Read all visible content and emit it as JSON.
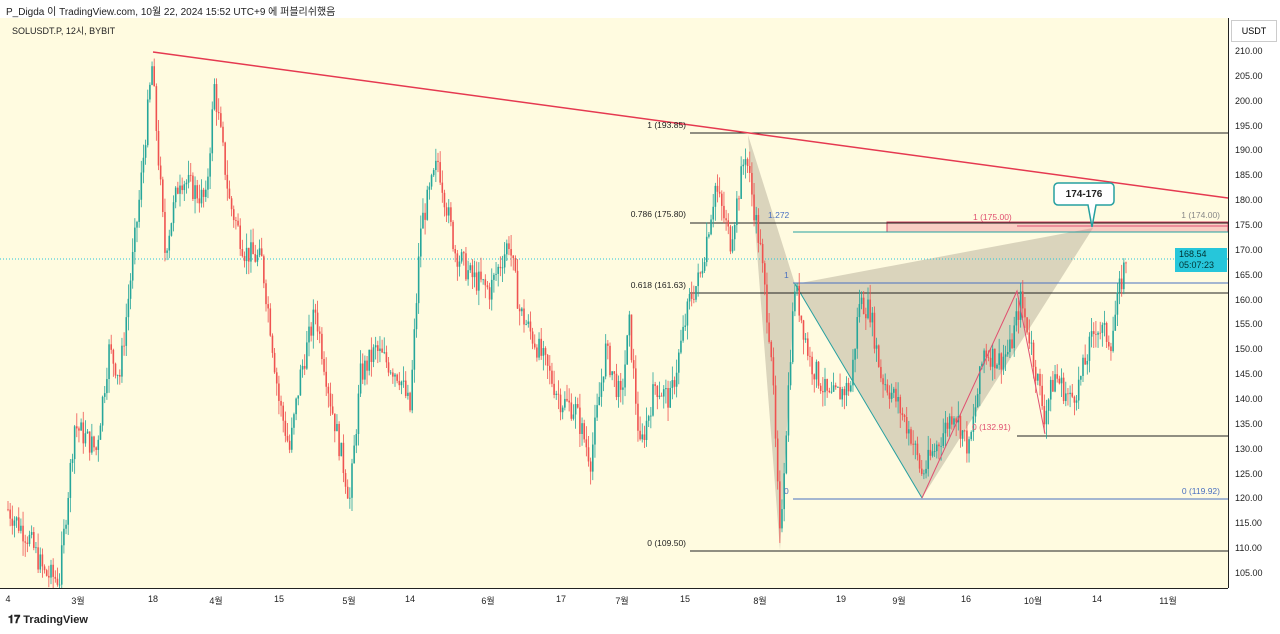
{
  "header": {
    "text": "P_Digda 이 TradingView.com, 10월 22, 2024 15:52 UTC+9 에 퍼블리쉬했음"
  },
  "symbol": "SOLUSDT.P, 12시, BYBIT",
  "axis": {
    "currency": "USDT",
    "prices": [
      "210.00",
      "205.00",
      "200.00",
      "195.00",
      "190.00",
      "185.00",
      "180.00",
      "175.00",
      "170.00",
      "165.00",
      "160.00",
      "155.00",
      "150.00",
      "145.00",
      "140.00",
      "135.00",
      "130.00",
      "125.00",
      "120.00",
      "115.00",
      "110.00",
      "105.00"
    ],
    "last_price": "168.54",
    "countdown": "05:07:23"
  },
  "xaxis": [
    "4",
    "3월",
    "18",
    "4월",
    "15",
    "5월",
    "14",
    "6월",
    "17",
    "7월",
    "15",
    "8월",
    "19",
    "9월",
    "16",
    "10월",
    "14",
    "11월"
  ],
  "annotations": {
    "fib_1": "1 (193.85)",
    "fib_786": "0.786 (175.80)",
    "fib_618": "0.618 (161.63)",
    "fib_0": "0 (109.50)",
    "ext_1272": "1.272",
    "ext_1": "1",
    "ext_0": "0",
    "ext_0_val": "0 (119.92)",
    "red_1": "1 (175.00)",
    "red_0": "0 (132.91)",
    "gray_1": "1 (174.00)",
    "callout": "174-176"
  },
  "footer": "TradingView",
  "chart_data": {
    "type": "candlestick",
    "price_range": [
      102,
      214
    ],
    "colors": {
      "up": "#26a69a",
      "down": "#ef5350",
      "trend": "#e53950"
    },
    "waypoints": [
      [
        0,
        118
      ],
      [
        10,
        112
      ],
      [
        17,
        105
      ],
      [
        24,
        104
      ],
      [
        31,
        135
      ],
      [
        41,
        130
      ],
      [
        47,
        150
      ],
      [
        52,
        145
      ],
      [
        61,
        180
      ],
      [
        67,
        207
      ],
      [
        73,
        170
      ],
      [
        80,
        185
      ],
      [
        92,
        180
      ],
      [
        96,
        203
      ],
      [
        103,
        180
      ],
      [
        110,
        170
      ],
      [
        118,
        168
      ],
      [
        122,
        155
      ],
      [
        126,
        140
      ],
      [
        131,
        130
      ],
      [
        136,
        145
      ],
      [
        143,
        158
      ],
      [
        150,
        140
      ],
      [
        159,
        120
      ],
      [
        164,
        145
      ],
      [
        171,
        150
      ],
      [
        182,
        145
      ],
      [
        187,
        138
      ],
      [
        192,
        175
      ],
      [
        200,
        188
      ],
      [
        208,
        170
      ],
      [
        215,
        165
      ],
      [
        224,
        162
      ],
      [
        233,
        172
      ],
      [
        238,
        158
      ],
      [
        247,
        150
      ],
      [
        257,
        140
      ],
      [
        264,
        138
      ],
      [
        271,
        128
      ],
      [
        278,
        150
      ],
      [
        285,
        140
      ],
      [
        289,
        155
      ],
      [
        294,
        130
      ],
      [
        301,
        143
      ],
      [
        308,
        140
      ],
      [
        317,
        160
      ],
      [
        322,
        165
      ],
      [
        329,
        183
      ],
      [
        336,
        172
      ],
      [
        343,
        190
      ],
      [
        350,
        170
      ],
      [
        355,
        150
      ],
      [
        359,
        112
      ],
      [
        364,
        150
      ],
      [
        366,
        163
      ],
      [
        373,
        148
      ],
      [
        382,
        140
      ],
      [
        392,
        143
      ],
      [
        396,
        160
      ],
      [
        401,
        158
      ],
      [
        406,
        145
      ],
      [
        413,
        140
      ],
      [
        420,
        133
      ],
      [
        425,
        125
      ],
      [
        431,
        130
      ],
      [
        440,
        138
      ],
      [
        447,
        130
      ],
      [
        454,
        150
      ],
      [
        461,
        148
      ],
      [
        466,
        150
      ],
      [
        471,
        160
      ],
      [
        475,
        153
      ],
      [
        482,
        137
      ],
      [
        487,
        145
      ],
      [
        494,
        140
      ],
      [
        498,
        143
      ],
      [
        506,
        155
      ],
      [
        513,
        152
      ],
      [
        517,
        162
      ],
      [
        520,
        168.5
      ]
    ]
  }
}
